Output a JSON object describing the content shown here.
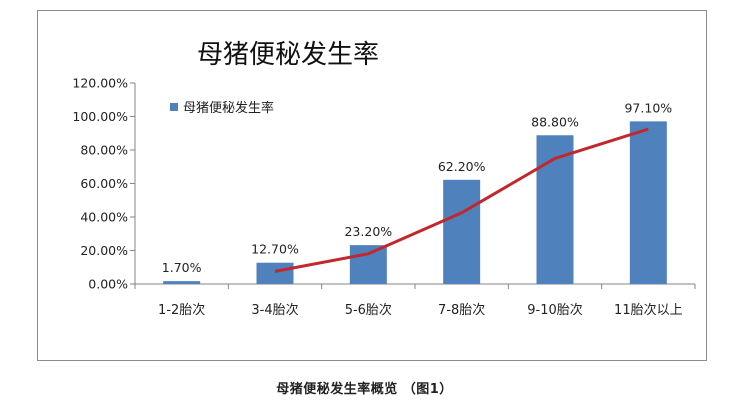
{
  "chart_data": {
    "type": "bar",
    "title": "母猪便秘发生率",
    "categories": [
      "1-2胎次",
      "3-4胎次",
      "5-6胎次",
      "7-8胎次",
      "9-10胎次",
      "11胎次以上"
    ],
    "series": [
      {
        "name": "母猪便秘发生率",
        "values": [
          1.7,
          12.7,
          23.2,
          62.2,
          88.8,
          97.1
        ],
        "data_labels": [
          "1.70%",
          "12.70%",
          "23.20%",
          "62.20%",
          "88.80%",
          "97.10%"
        ]
      }
    ],
    "trendline": {
      "type": "line",
      "start_category": "3-4胎次",
      "end_category": "11胎次以上",
      "values": [
        7.5,
        18.0,
        42.5,
        75.0,
        92.5
      ]
    },
    "y_ticks": [
      "0.00%",
      "20.00%",
      "40.00%",
      "60.00%",
      "80.00%",
      "100.00%",
      "120.00%"
    ],
    "ylim": [
      0,
      120
    ],
    "grid": false,
    "legend_position": "top-left",
    "colors": {
      "bar": "#4f81bd",
      "trend": "#c0282d",
      "axis": "#868686"
    }
  },
  "caption": "母猪便秘发生率概览 （图1）"
}
